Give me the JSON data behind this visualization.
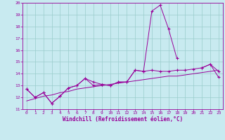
{
  "xlabel": "Windchill (Refroidissement éolien,°C)",
  "x_values": [
    0,
    1,
    2,
    3,
    4,
    5,
    6,
    7,
    8,
    9,
    10,
    11,
    12,
    13,
    14,
    15,
    16,
    17,
    18,
    19,
    20,
    21,
    22,
    23
  ],
  "line1_y": [
    12.7,
    12.0,
    12.4,
    11.5,
    12.1,
    12.8,
    13.0,
    13.6,
    13.0,
    13.1,
    13.0,
    13.3,
    13.3,
    14.3,
    14.2,
    19.3,
    19.8,
    17.8,
    15.3,
    null,
    null,
    14.5,
    14.8,
    14.2
  ],
  "line2_y": [
    12.7,
    12.0,
    12.4,
    11.5,
    12.1,
    12.8,
    13.0,
    13.6,
    13.3,
    13.1,
    13.0,
    13.3,
    13.3,
    14.3,
    14.2,
    14.3,
    14.2,
    14.2,
    14.3,
    14.3,
    14.4,
    14.5,
    14.8,
    13.7
  ],
  "line3_y": [
    11.7,
    11.9,
    12.1,
    12.2,
    12.4,
    12.5,
    12.7,
    12.8,
    12.9,
    13.0,
    13.1,
    13.2,
    13.3,
    13.4,
    13.5,
    13.6,
    13.7,
    13.8,
    13.8,
    13.9,
    14.0,
    14.1,
    14.2,
    14.3
  ],
  "line_color": "#990099",
  "bg_color": "#c8eaf0",
  "grid_color": "#99cccc",
  "ylim": [
    11,
    20
  ],
  "xlim": [
    -0.5,
    23.5
  ],
  "yticks": [
    11,
    12,
    13,
    14,
    15,
    16,
    17,
    18,
    19,
    20
  ],
  "xticks": [
    0,
    1,
    2,
    3,
    4,
    5,
    6,
    7,
    8,
    9,
    10,
    11,
    12,
    13,
    14,
    15,
    16,
    17,
    18,
    19,
    20,
    21,
    22,
    23
  ]
}
